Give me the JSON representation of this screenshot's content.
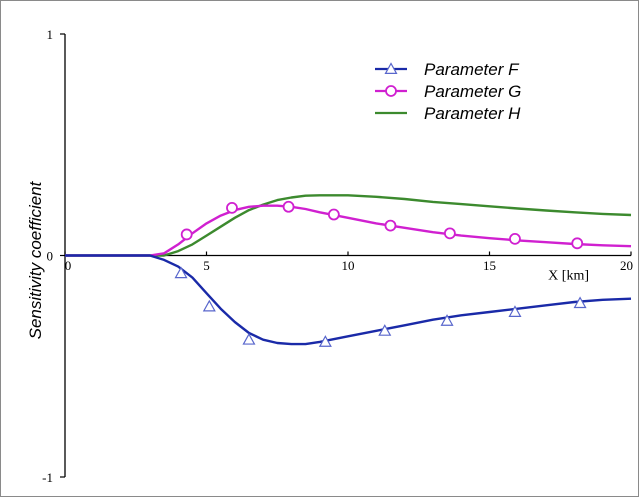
{
  "chart_data": {
    "type": "line",
    "title": "",
    "xlabel": "X [km]",
    "ylabel": "Sensitivity coefficient",
    "xlim": [
      0,
      20
    ],
    "ylim": [
      -1,
      1
    ],
    "x_ticks": [
      {
        "value": 0,
        "label": "0"
      },
      {
        "value": 5,
        "label": "5"
      },
      {
        "value": 10,
        "label": "10"
      },
      {
        "value": 15,
        "label": "15"
      },
      {
        "value": 20,
        "label": "20"
      }
    ],
    "y_ticks": [
      {
        "value": 1,
        "label": "1"
      },
      {
        "value": 0,
        "label": "0"
      },
      {
        "value": -1,
        "label": "-1"
      }
    ],
    "grid": false,
    "legend_position": "top-right",
    "series": [
      {
        "name": "Parameter F",
        "color": "#1a2aa8",
        "marker": "triangle",
        "x": [
          0,
          2,
          3,
          3.5,
          4,
          4.5,
          5,
          5.5,
          6,
          6.5,
          7,
          7.5,
          8,
          8.5,
          9,
          10,
          11,
          12,
          13,
          14,
          15,
          16,
          17,
          18,
          19,
          20
        ],
        "y": [
          0,
          0,
          0,
          -0.02,
          -0.05,
          -0.1,
          -0.17,
          -0.24,
          -0.3,
          -0.35,
          -0.38,
          -0.395,
          -0.4,
          -0.4,
          -0.39,
          -0.365,
          -0.34,
          -0.315,
          -0.29,
          -0.27,
          -0.255,
          -0.24,
          -0.225,
          -0.21,
          -0.2,
          -0.195
        ],
        "marker_x": [
          4.1,
          5.1,
          6.5,
          9.2,
          11.3,
          13.5,
          15.9,
          18.2
        ],
        "marker_y": [
          -0.08,
          -0.23,
          -0.38,
          -0.39,
          -0.34,
          -0.295,
          -0.255,
          -0.215
        ]
      },
      {
        "name": "Parameter G",
        "color": "#d020d0",
        "marker": "circle",
        "x": [
          0,
          3,
          3.5,
          4,
          4.5,
          5,
          5.5,
          6,
          6.5,
          7,
          7.5,
          8,
          8.5,
          9,
          10,
          11,
          12,
          13,
          14,
          15,
          16,
          17,
          18,
          19,
          20
        ],
        "y": [
          0,
          0,
          0.01,
          0.05,
          0.1,
          0.145,
          0.18,
          0.205,
          0.22,
          0.225,
          0.225,
          0.22,
          0.21,
          0.195,
          0.17,
          0.145,
          0.125,
          0.105,
          0.09,
          0.078,
          0.068,
          0.06,
          0.052,
          0.046,
          0.042
        ],
        "marker_x": [
          4.3,
          5.9,
          7.9,
          9.5,
          11.5,
          13.6,
          15.9,
          18.1
        ],
        "marker_y": [
          0.095,
          0.215,
          0.22,
          0.185,
          0.135,
          0.1,
          0.075,
          0.055
        ]
      },
      {
        "name": "Parameter H",
        "color": "#3c8a2e",
        "marker": "none",
        "x": [
          0,
          3.5,
          4,
          4.5,
          5,
          5.5,
          6,
          6.5,
          7,
          7.5,
          8,
          8.5,
          9,
          10,
          11,
          12,
          13,
          14,
          15,
          16,
          17,
          18,
          19,
          20
        ],
        "y": [
          0,
          0,
          0.02,
          0.05,
          0.09,
          0.13,
          0.17,
          0.205,
          0.23,
          0.25,
          0.262,
          0.27,
          0.272,
          0.272,
          0.265,
          0.255,
          0.242,
          0.232,
          0.222,
          0.212,
          0.203,
          0.195,
          0.188,
          0.183
        ]
      }
    ]
  }
}
